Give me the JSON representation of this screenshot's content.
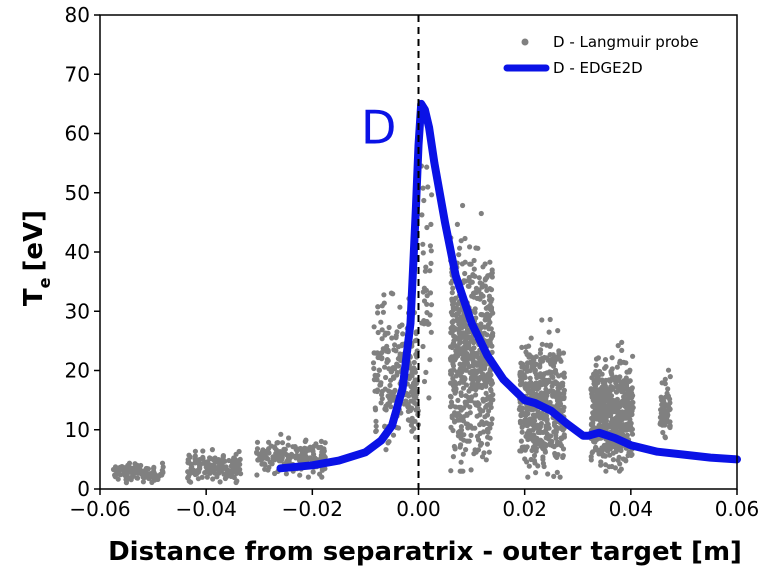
{
  "chart_data": {
    "type": "scatter",
    "xlabel": "Distance from separatrix - outer target [m]",
    "ylabel_main": "T",
    "ylabel_sub": "e",
    "ylabel_unit": "[eV]",
    "xlim": [
      -0.06,
      0.06
    ],
    "ylim": [
      0,
      80
    ],
    "xticks": [
      -0.06,
      -0.04,
      -0.02,
      0.0,
      0.02,
      0.04,
      0.06
    ],
    "xtick_labels": [
      "−0.06",
      "−0.04",
      "−0.02",
      "0.00",
      "0.02",
      "0.04",
      "0.06"
    ],
    "yticks": [
      0,
      10,
      20,
      30,
      40,
      50,
      60,
      70,
      80
    ],
    "ytick_labels": [
      "0",
      "10",
      "20",
      "30",
      "40",
      "50",
      "60",
      "70",
      "80"
    ],
    "separatrix_line_x": 0.0,
    "grid": false,
    "legend_placement": "top-right",
    "annotation": {
      "text": "D",
      "x": -0.0075,
      "y": 61
    },
    "colors": {
      "probe": "#808080",
      "edge2d": "#0a12e6",
      "separatrix": "#000000"
    },
    "series": [
      {
        "name": "D - Langmuir probe",
        "kind": "scatter",
        "clusters": [
          {
            "x": [
              -0.0575,
              -0.048
            ],
            "y": [
              1,
              5.5
            ],
            "density": 110
          },
          {
            "x": [
              -0.0435,
              -0.0335
            ],
            "y": [
              1,
              8.5
            ],
            "density": 150
          },
          {
            "x": [
              -0.0305,
              -0.0175
            ],
            "y": [
              2,
              11
            ],
            "density": 180
          },
          {
            "x": [
              -0.0085,
              0.0
            ],
            "y": [
              5,
              41
            ],
            "density": 240
          },
          {
            "x": [
              0.0005,
              0.0025
            ],
            "y": [
              15,
              66
            ],
            "density": 40
          },
          {
            "x": [
              0.006,
              0.014
            ],
            "y": [
              3,
              56
            ],
            "density": 600
          },
          {
            "x": [
              0.019,
              0.0275
            ],
            "y": [
              2,
              34
            ],
            "density": 480
          },
          {
            "x": [
              0.0325,
              0.0405
            ],
            "y": [
              3,
              29
            ],
            "density": 520
          },
          {
            "x": [
              0.0455,
              0.0475
            ],
            "y": [
              6,
              25
            ],
            "density": 60
          }
        ]
      },
      {
        "name": "D - EDGE2D",
        "kind": "line",
        "x": [
          -0.026,
          -0.02,
          -0.015,
          -0.01,
          -0.007,
          -0.005,
          -0.003,
          -0.0015,
          -0.0005,
          0.0,
          0.0005,
          0.0012,
          0.002,
          0.003,
          0.005,
          0.007,
          0.01,
          0.013,
          0.016,
          0.02,
          0.022,
          0.025,
          0.028,
          0.031,
          0.032,
          0.034,
          0.037,
          0.04,
          0.045,
          0.05,
          0.055,
          0.06
        ],
        "y": [
          3.5,
          4.0,
          4.8,
          6.2,
          8.2,
          10.7,
          17,
          28,
          47,
          58,
          65,
          64,
          61,
          55,
          45,
          36,
          28,
          22.5,
          18.5,
          15,
          14.5,
          13.2,
          11,
          9,
          9,
          9.5,
          8.6,
          7.4,
          6.3,
          5.8,
          5.3,
          5.0
        ]
      }
    ]
  }
}
